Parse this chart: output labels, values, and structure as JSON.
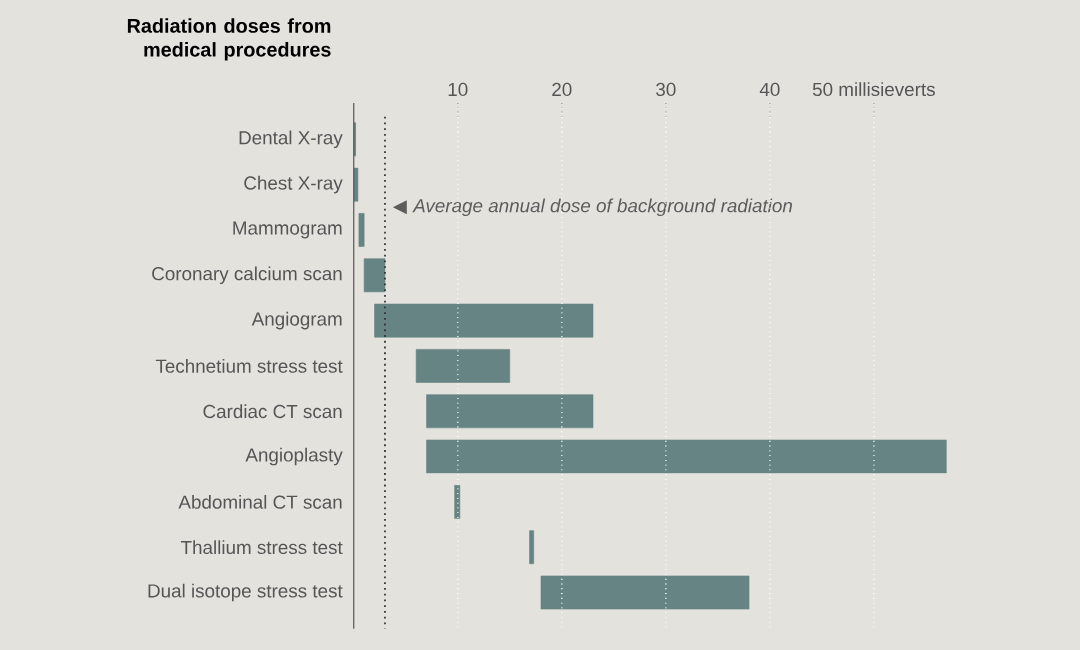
{
  "chart_data": {
    "type": "bar",
    "orientation": "horizontal",
    "title": "Radiation doses from medical procedures",
    "categories": [
      "Dental X-ray",
      "Chest X-ray",
      "Mammogram",
      "Coronary calcium scan",
      "Angiogram",
      "Technetium stress test",
      "Cardiac CT scan",
      "Angioplasty",
      "Abdominal CT scan",
      "Thallium stress test",
      "Dual isotope stress test"
    ],
    "base": [
      0,
      0,
      0.5,
      1,
      2,
      6,
      7,
      7,
      9.7,
      16.9,
      18
    ],
    "values": [
      0.2,
      0.4,
      0.5,
      2,
      21,
      9,
      16,
      50,
      0.5,
      0.4,
      20
    ],
    "color": "#658483",
    "xlim": [
      0,
      57
    ],
    "xticks": [
      10,
      20,
      30,
      40,
      {
        "value": 50,
        "label": "50 millisieverts"
      }
    ],
    "grid": "x",
    "ref_lines": [
      {
        "axis": "x",
        "value": 3,
        "label": "Average annual dose of background radiation",
        "line_style": "dotted",
        "color": "#333333"
      }
    ]
  }
}
